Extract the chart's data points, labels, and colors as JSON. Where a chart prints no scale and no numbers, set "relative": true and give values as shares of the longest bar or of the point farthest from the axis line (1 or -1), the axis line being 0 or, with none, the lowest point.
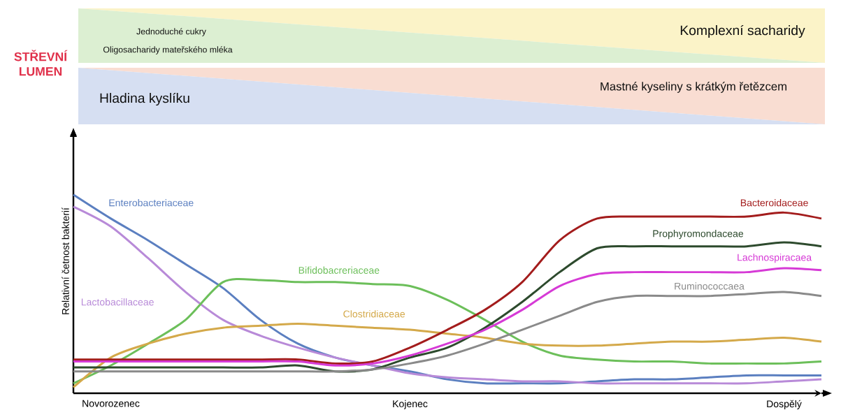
{
  "chart_data": {
    "type": "line",
    "relative": true,
    "ylabel": "Relativní četnost bakterií",
    "categories": [
      null,
      "Novorozenec",
      null,
      null,
      null,
      null,
      null,
      null,
      null,
      "Kojenec",
      null,
      null,
      null,
      null,
      null,
      null,
      null,
      null,
      null,
      "Dospělý",
      null
    ],
    "series": [
      {
        "name": "Enterobacteriaceae",
        "color": "#5b7fc0",
        "values": [
          1.0,
          0.88,
          0.77,
          0.65,
          0.53,
          0.37,
          0.25,
          0.18,
          0.14,
          0.11,
          0.07,
          0.05,
          0.05,
          0.05,
          0.06,
          0.07,
          0.07,
          0.08,
          0.09,
          0.09,
          0.09
        ]
      },
      {
        "name": "Lactobacillaceae",
        "color": "#b88ad8",
        "values": [
          0.94,
          0.84,
          0.68,
          0.51,
          0.37,
          0.29,
          0.23,
          0.18,
          0.14,
          0.1,
          0.08,
          0.07,
          0.06,
          0.06,
          0.05,
          0.05,
          0.05,
          0.05,
          0.05,
          0.06,
          0.07
        ]
      },
      {
        "name": "Bifidobacreriaceae",
        "color": "#6cbf5a",
        "values": [
          0.05,
          0.14,
          0.25,
          0.37,
          0.56,
          0.57,
          0.56,
          0.56,
          0.55,
          0.54,
          0.47,
          0.37,
          0.26,
          0.19,
          0.17,
          0.16,
          0.16,
          0.15,
          0.15,
          0.15,
          0.16
        ]
      },
      {
        "name": "Clostridiaceae",
        "color": "#d4a94a",
        "values": [
          0.03,
          0.18,
          0.25,
          0.3,
          0.33,
          0.34,
          0.35,
          0.34,
          0.33,
          0.32,
          0.3,
          0.28,
          0.25,
          0.24,
          0.24,
          0.25,
          0.26,
          0.26,
          0.27,
          0.28,
          0.26
        ]
      },
      {
        "name": "Bacteroidaceae",
        "color": "#a31c1c",
        "values": [
          0.17,
          0.17,
          0.17,
          0.17,
          0.17,
          0.17,
          0.17,
          0.15,
          0.16,
          0.23,
          0.32,
          0.42,
          0.56,
          0.77,
          0.88,
          0.89,
          0.89,
          0.89,
          0.89,
          0.91,
          0.88
        ]
      },
      {
        "name": "Prophyromondaceae",
        "color": "#2d4a2d",
        "values": [
          0.13,
          0.13,
          0.13,
          0.13,
          0.13,
          0.13,
          0.14,
          0.11,
          0.12,
          0.18,
          0.23,
          0.33,
          0.46,
          0.61,
          0.73,
          0.74,
          0.74,
          0.74,
          0.74,
          0.76,
          0.74
        ]
      },
      {
        "name": "Lachnospiracaea",
        "color": "#d63ad6",
        "values": [
          0.16,
          0.16,
          0.16,
          0.16,
          0.16,
          0.16,
          0.16,
          0.14,
          0.15,
          0.19,
          0.25,
          0.32,
          0.42,
          0.54,
          0.6,
          0.61,
          0.61,
          0.61,
          0.61,
          0.63,
          0.62
        ]
      },
      {
        "name": "Ruminococcaea",
        "color": "#8a8a8a",
        "values": [
          0.11,
          0.11,
          0.11,
          0.11,
          0.11,
          0.11,
          0.11,
          0.11,
          0.12,
          0.15,
          0.19,
          0.25,
          0.32,
          0.39,
          0.46,
          0.49,
          0.49,
          0.49,
          0.5,
          0.51,
          0.49
        ]
      }
    ],
    "annotations": [
      "STŘEVNÍ LUMEN",
      "Jednoduché cukry",
      "Oligosacharidy mateřského mléka",
      "Komplexní sacharidy",
      "Hladina kyslíku",
      "Mastné kyseliny s krátkým řetězcem"
    ]
  }
}
